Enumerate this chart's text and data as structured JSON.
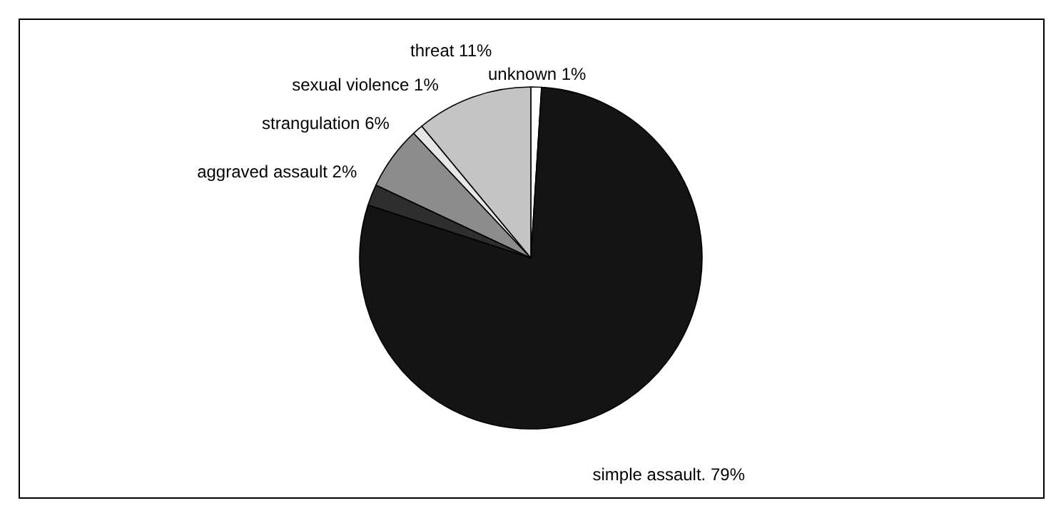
{
  "chart_data": {
    "type": "pie",
    "categories": [
      "unknown",
      "simple assault.",
      "aggraved assault",
      "strangulation",
      "sexual violence",
      "threat"
    ],
    "values": [
      1,
      79,
      2,
      6,
      1,
      11
    ],
    "value_labels": [
      "1%",
      "79%",
      "2%",
      "6%",
      "1%",
      "11%"
    ],
    "colors": [
      "#ffffff",
      "#141414",
      "#2e2e2e",
      "#8c8c8c",
      "#e6e6e6",
      "#c4c4c4"
    ]
  }
}
